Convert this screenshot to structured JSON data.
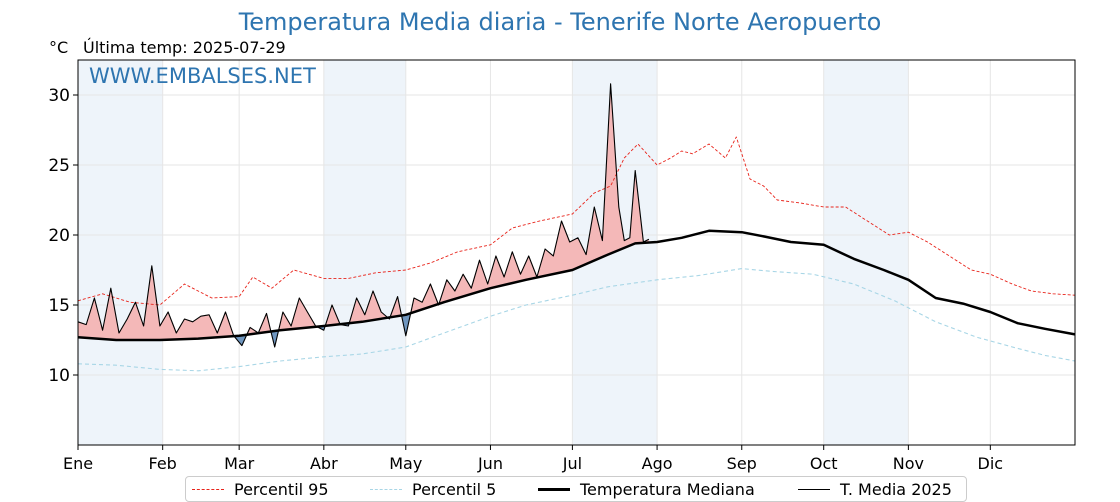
{
  "title": "Temperatura Media diaria - Tenerife Norte Aeropuerto",
  "unit_label": "°C",
  "last_temp_label": "Última temp: 2025-07-29",
  "watermark": "WWW.EMBALSES.NET",
  "colors": {
    "p95": "#e8231a",
    "p5": "#a8d6e6",
    "median": "#000000",
    "current": "#000000",
    "above_fill": "#f4b8b8",
    "below_fill": "#6f96bf",
    "band": "#eef4fa",
    "title": "#2e75b0"
  },
  "legend": {
    "p95": "Percentil 95",
    "p5": "Percentil 5",
    "median": "Temperatura Mediana",
    "current": "T. Media 2025"
  },
  "chart_data": {
    "type": "line",
    "title": "Temperatura Media diaria - Tenerife Norte Aeropuerto",
    "ylabel": "°C",
    "ylim": [
      5,
      32.5
    ],
    "y_ticks": [
      10,
      15,
      20,
      25,
      30
    ],
    "x_unit": "day of year",
    "xlim": [
      1,
      366
    ],
    "months": [
      {
        "label": "Ene",
        "day": 1
      },
      {
        "label": "Feb",
        "day": 32
      },
      {
        "label": "Mar",
        "day": 60
      },
      {
        "label": "Abr",
        "day": 91
      },
      {
        "label": "May",
        "day": 121
      },
      {
        "label": "Jun",
        "day": 152
      },
      {
        "label": "Jul",
        "day": 182
      },
      {
        "label": "Ago",
        "day": 213
      },
      {
        "label": "Sep",
        "day": 244
      },
      {
        "label": "Oct",
        "day": 274
      },
      {
        "label": "Nov",
        "day": 305
      },
      {
        "label": "Dic",
        "day": 335
      }
    ],
    "grid": true,
    "legend_position": "bottom",
    "series": [
      {
        "name": "Percentil 95",
        "style": "dashed",
        "x": [
          1,
          10,
          20,
          31,
          40,
          50,
          60,
          65,
          72,
          80,
          91,
          100,
          110,
          121,
          130,
          140,
          152,
          160,
          170,
          182,
          190,
          196,
          201,
          206,
          213,
          218,
          222,
          226,
          232,
          238,
          242,
          247,
          252,
          257,
          265,
          274,
          282,
          290,
          298,
          305,
          312,
          320,
          328,
          335,
          343,
          350,
          358,
          366
        ],
        "y": [
          15.3,
          15.8,
          15.2,
          15.0,
          16.5,
          15.5,
          15.6,
          17.0,
          16.2,
          17.5,
          16.9,
          16.9,
          17.3,
          17.5,
          18.0,
          18.8,
          19.3,
          20.5,
          21.0,
          21.5,
          23.0,
          23.5,
          25.5,
          26.5,
          25.0,
          25.5,
          26.0,
          25.8,
          26.5,
          25.5,
          27.0,
          24.0,
          23.5,
          22.5,
          22.3,
          22.0,
          22.0,
          21.0,
          20.0,
          20.2,
          19.5,
          18.5,
          17.5,
          17.2,
          16.5,
          16.0,
          15.8,
          15.7
        ]
      },
      {
        "name": "Percentil 5",
        "style": "dashed",
        "x": [
          1,
          15,
          31,
          45,
          60,
          75,
          91,
          105,
          121,
          135,
          152,
          165,
          182,
          195,
          213,
          228,
          244,
          255,
          270,
          285,
          300,
          315,
          330,
          345,
          355,
          366
        ],
        "y": [
          10.8,
          10.7,
          10.4,
          10.3,
          10.6,
          11.0,
          11.3,
          11.5,
          12.0,
          13.0,
          14.2,
          15.0,
          15.7,
          16.3,
          16.8,
          17.1,
          17.6,
          17.4,
          17.2,
          16.5,
          15.3,
          13.8,
          12.7,
          11.9,
          11.4,
          11.0
        ]
      },
      {
        "name": "Temperatura Mediana",
        "style": "solid",
        "x": [
          1,
          15,
          31,
          45,
          60,
          75,
          91,
          105,
          121,
          135,
          152,
          165,
          182,
          195,
          205,
          213,
          222,
          232,
          244,
          252,
          262,
          274,
          285,
          296,
          305,
          315,
          325,
          335,
          345,
          355,
          366
        ],
        "y": [
          12.7,
          12.5,
          12.5,
          12.6,
          12.8,
          13.2,
          13.5,
          13.8,
          14.3,
          15.2,
          16.2,
          16.8,
          17.5,
          18.6,
          19.4,
          19.5,
          19.8,
          20.3,
          20.2,
          19.9,
          19.5,
          19.3,
          18.3,
          17.5,
          16.8,
          15.5,
          15.1,
          14.5,
          13.7,
          13.3,
          12.9
        ]
      },
      {
        "name": "T. Media 2025",
        "style": "solid",
        "x": [
          1,
          4,
          7,
          10,
          13,
          16,
          19,
          22,
          25,
          28,
          31,
          34,
          37,
          40,
          43,
          46,
          49,
          52,
          55,
          58,
          61,
          64,
          67,
          70,
          73,
          76,
          79,
          82,
          85,
          88,
          91,
          94,
          97,
          100,
          103,
          106,
          109,
          112,
          115,
          118,
          121,
          124,
          127,
          130,
          133,
          136,
          139,
          142,
          145,
          148,
          151,
          154,
          157,
          160,
          163,
          166,
          169,
          172,
          175,
          178,
          181,
          184,
          187,
          190,
          193,
          196,
          199,
          201,
          203,
          205,
          208,
          210
        ],
        "y": [
          13.8,
          13.6,
          15.5,
          13.2,
          16.2,
          13.0,
          14.0,
          15.2,
          13.5,
          17.8,
          13.5,
          14.5,
          13.0,
          14.0,
          13.8,
          14.2,
          14.3,
          13.0,
          14.5,
          12.8,
          12.1,
          13.4,
          13.0,
          14.4,
          12.0,
          14.5,
          13.5,
          15.5,
          14.5,
          13.5,
          13.2,
          15.0,
          13.6,
          13.5,
          15.5,
          14.3,
          16.0,
          14.5,
          14.0,
          15.6,
          12.8,
          15.5,
          15.2,
          16.5,
          15.0,
          16.8,
          16.0,
          17.2,
          16.2,
          18.2,
          16.5,
          18.5,
          17.0,
          18.8,
          17.2,
          18.5,
          17.0,
          19.0,
          18.5,
          21.0,
          19.5,
          19.8,
          18.6,
          22.0,
          19.6,
          30.8,
          22.0,
          19.6,
          19.8,
          24.6,
          19.5,
          19.7
        ]
      }
    ]
  }
}
